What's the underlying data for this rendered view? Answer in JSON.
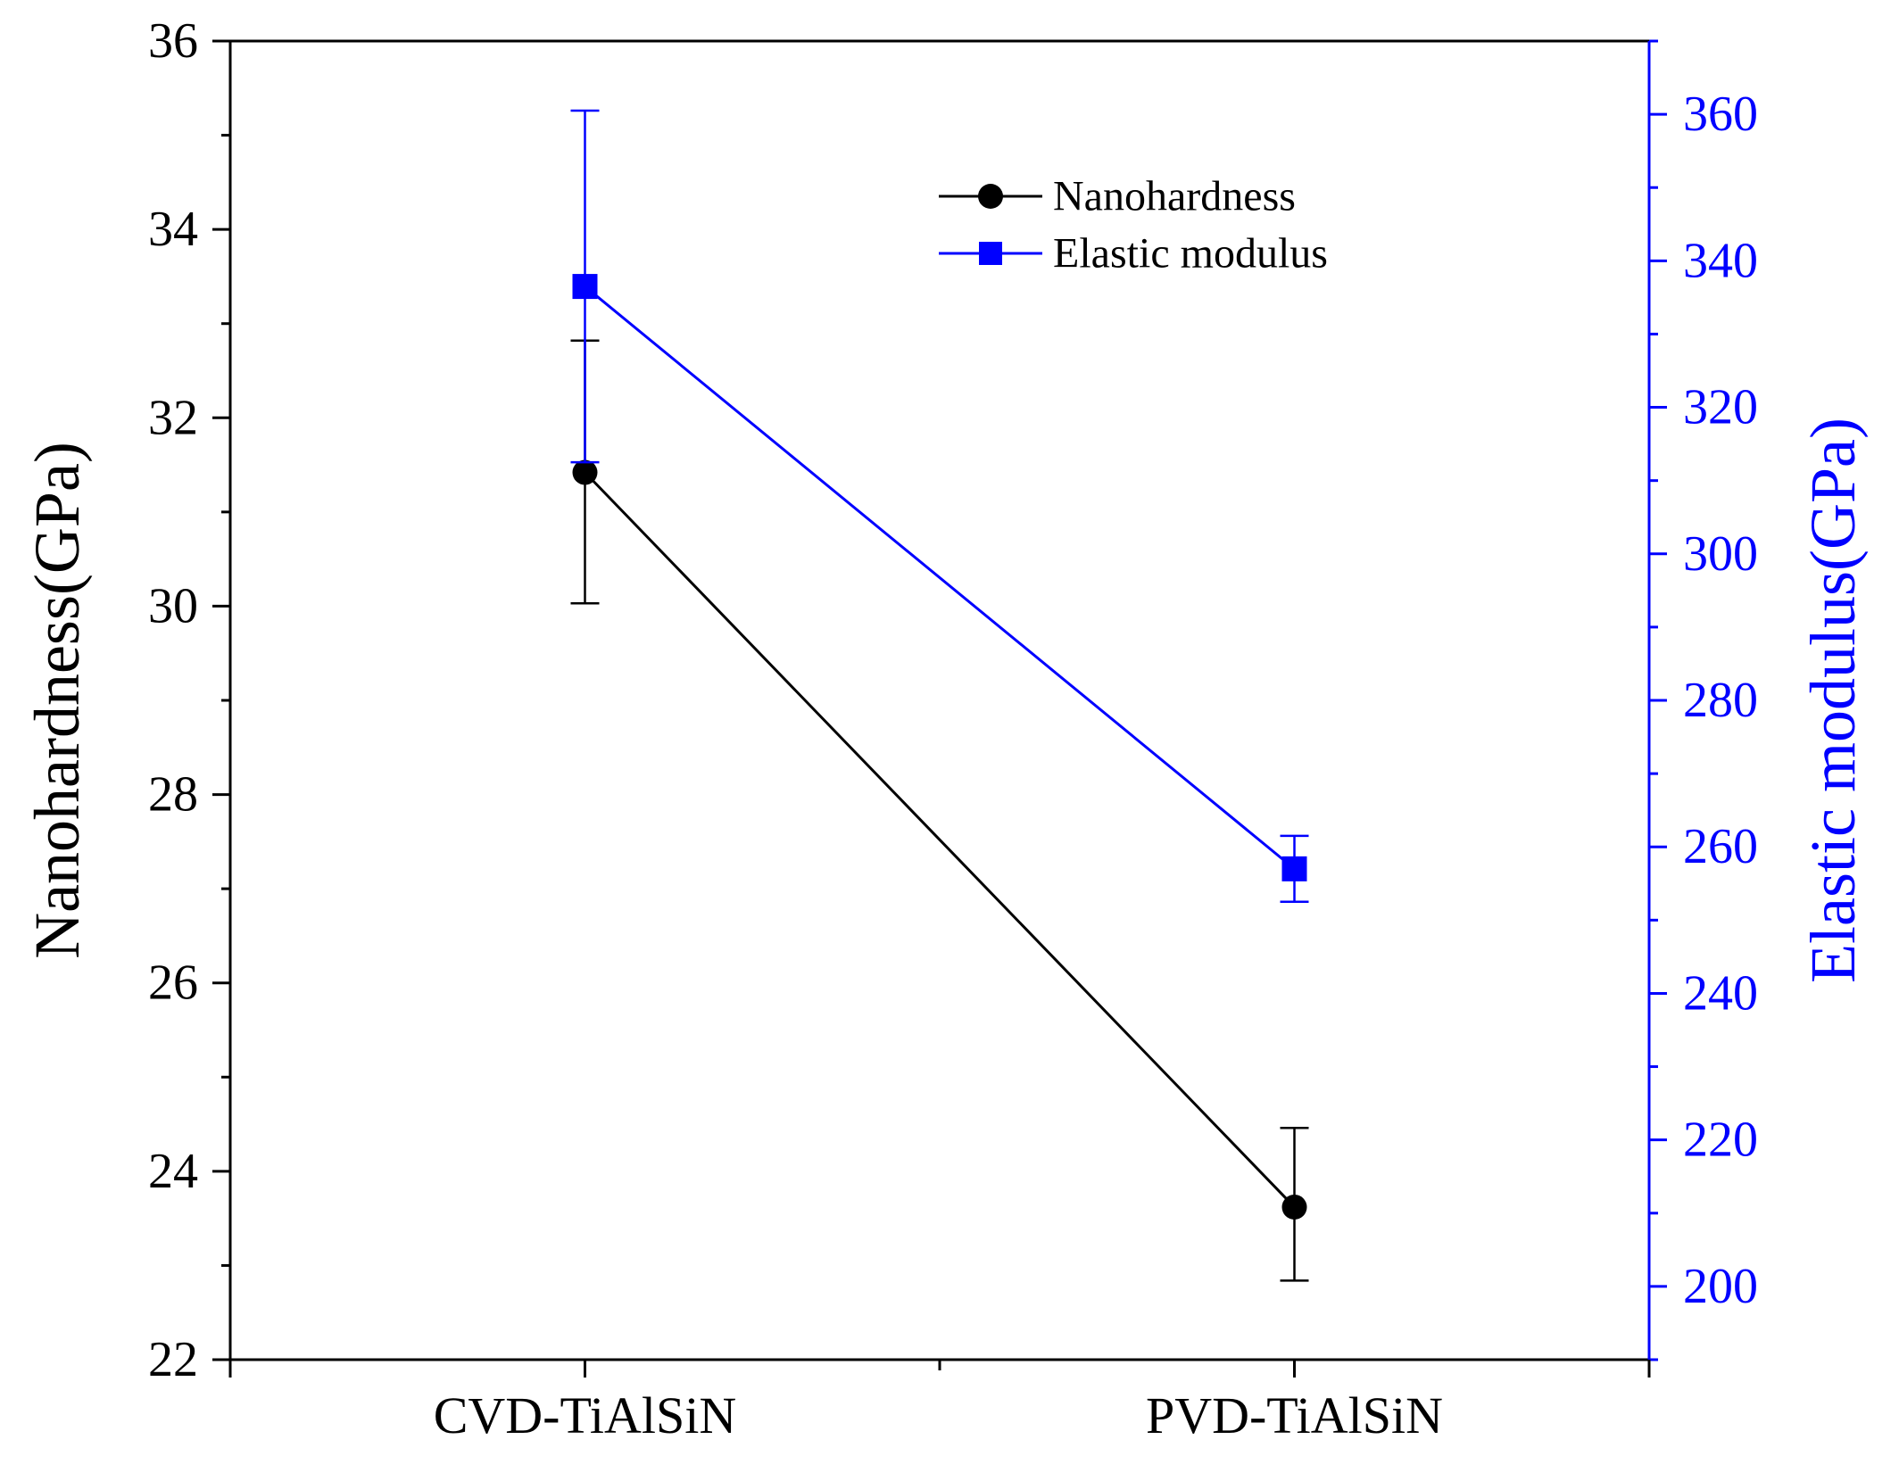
{
  "chart_data": {
    "type": "line",
    "categories": [
      "CVD-TiAlSiN",
      "PVD-TiAlSiN"
    ],
    "series": [
      {
        "name": "Nanohardness",
        "axis": "left",
        "color": "#000000",
        "marker": "circle",
        "values": [
          31.42,
          23.62
        ],
        "error_lower": [
          30.03,
          22.84
        ],
        "error_upper": [
          32.82,
          24.46
        ]
      },
      {
        "name": "Elastic modulus",
        "axis": "right",
        "color": "#0000ff",
        "marker": "square",
        "values": [
          336.5,
          257.0
        ],
        "error_lower": [
          312.5,
          252.5
        ],
        "error_upper": [
          360.5,
          261.5
        ]
      }
    ],
    "y_left": {
      "label": "Nanohardness(GPa)",
      "range": [
        22,
        36
      ],
      "ticks": [
        "22",
        "24",
        "26",
        "28",
        "30",
        "32",
        "34",
        "36"
      ],
      "tick_values": [
        22,
        24,
        26,
        28,
        30,
        32,
        34,
        36
      ],
      "minor_step": 1
    },
    "y_right": {
      "label": "Elastic modulus(GPa)",
      "range": [
        190,
        370
      ],
      "ticks": [
        "200",
        "220",
        "240",
        "260",
        "280",
        "300",
        "320",
        "340",
        "360"
      ],
      "tick_values": [
        200,
        220,
        240,
        260,
        280,
        300,
        320,
        340,
        360
      ],
      "minor_step": 10,
      "color": "#0000ff"
    },
    "x_axis": {
      "range": [
        -0.5,
        1.5
      ],
      "category_positions": [
        0,
        1
      ],
      "minor_positions": [
        0.5
      ]
    },
    "legend_position": "top-center",
    "grid": false
  }
}
